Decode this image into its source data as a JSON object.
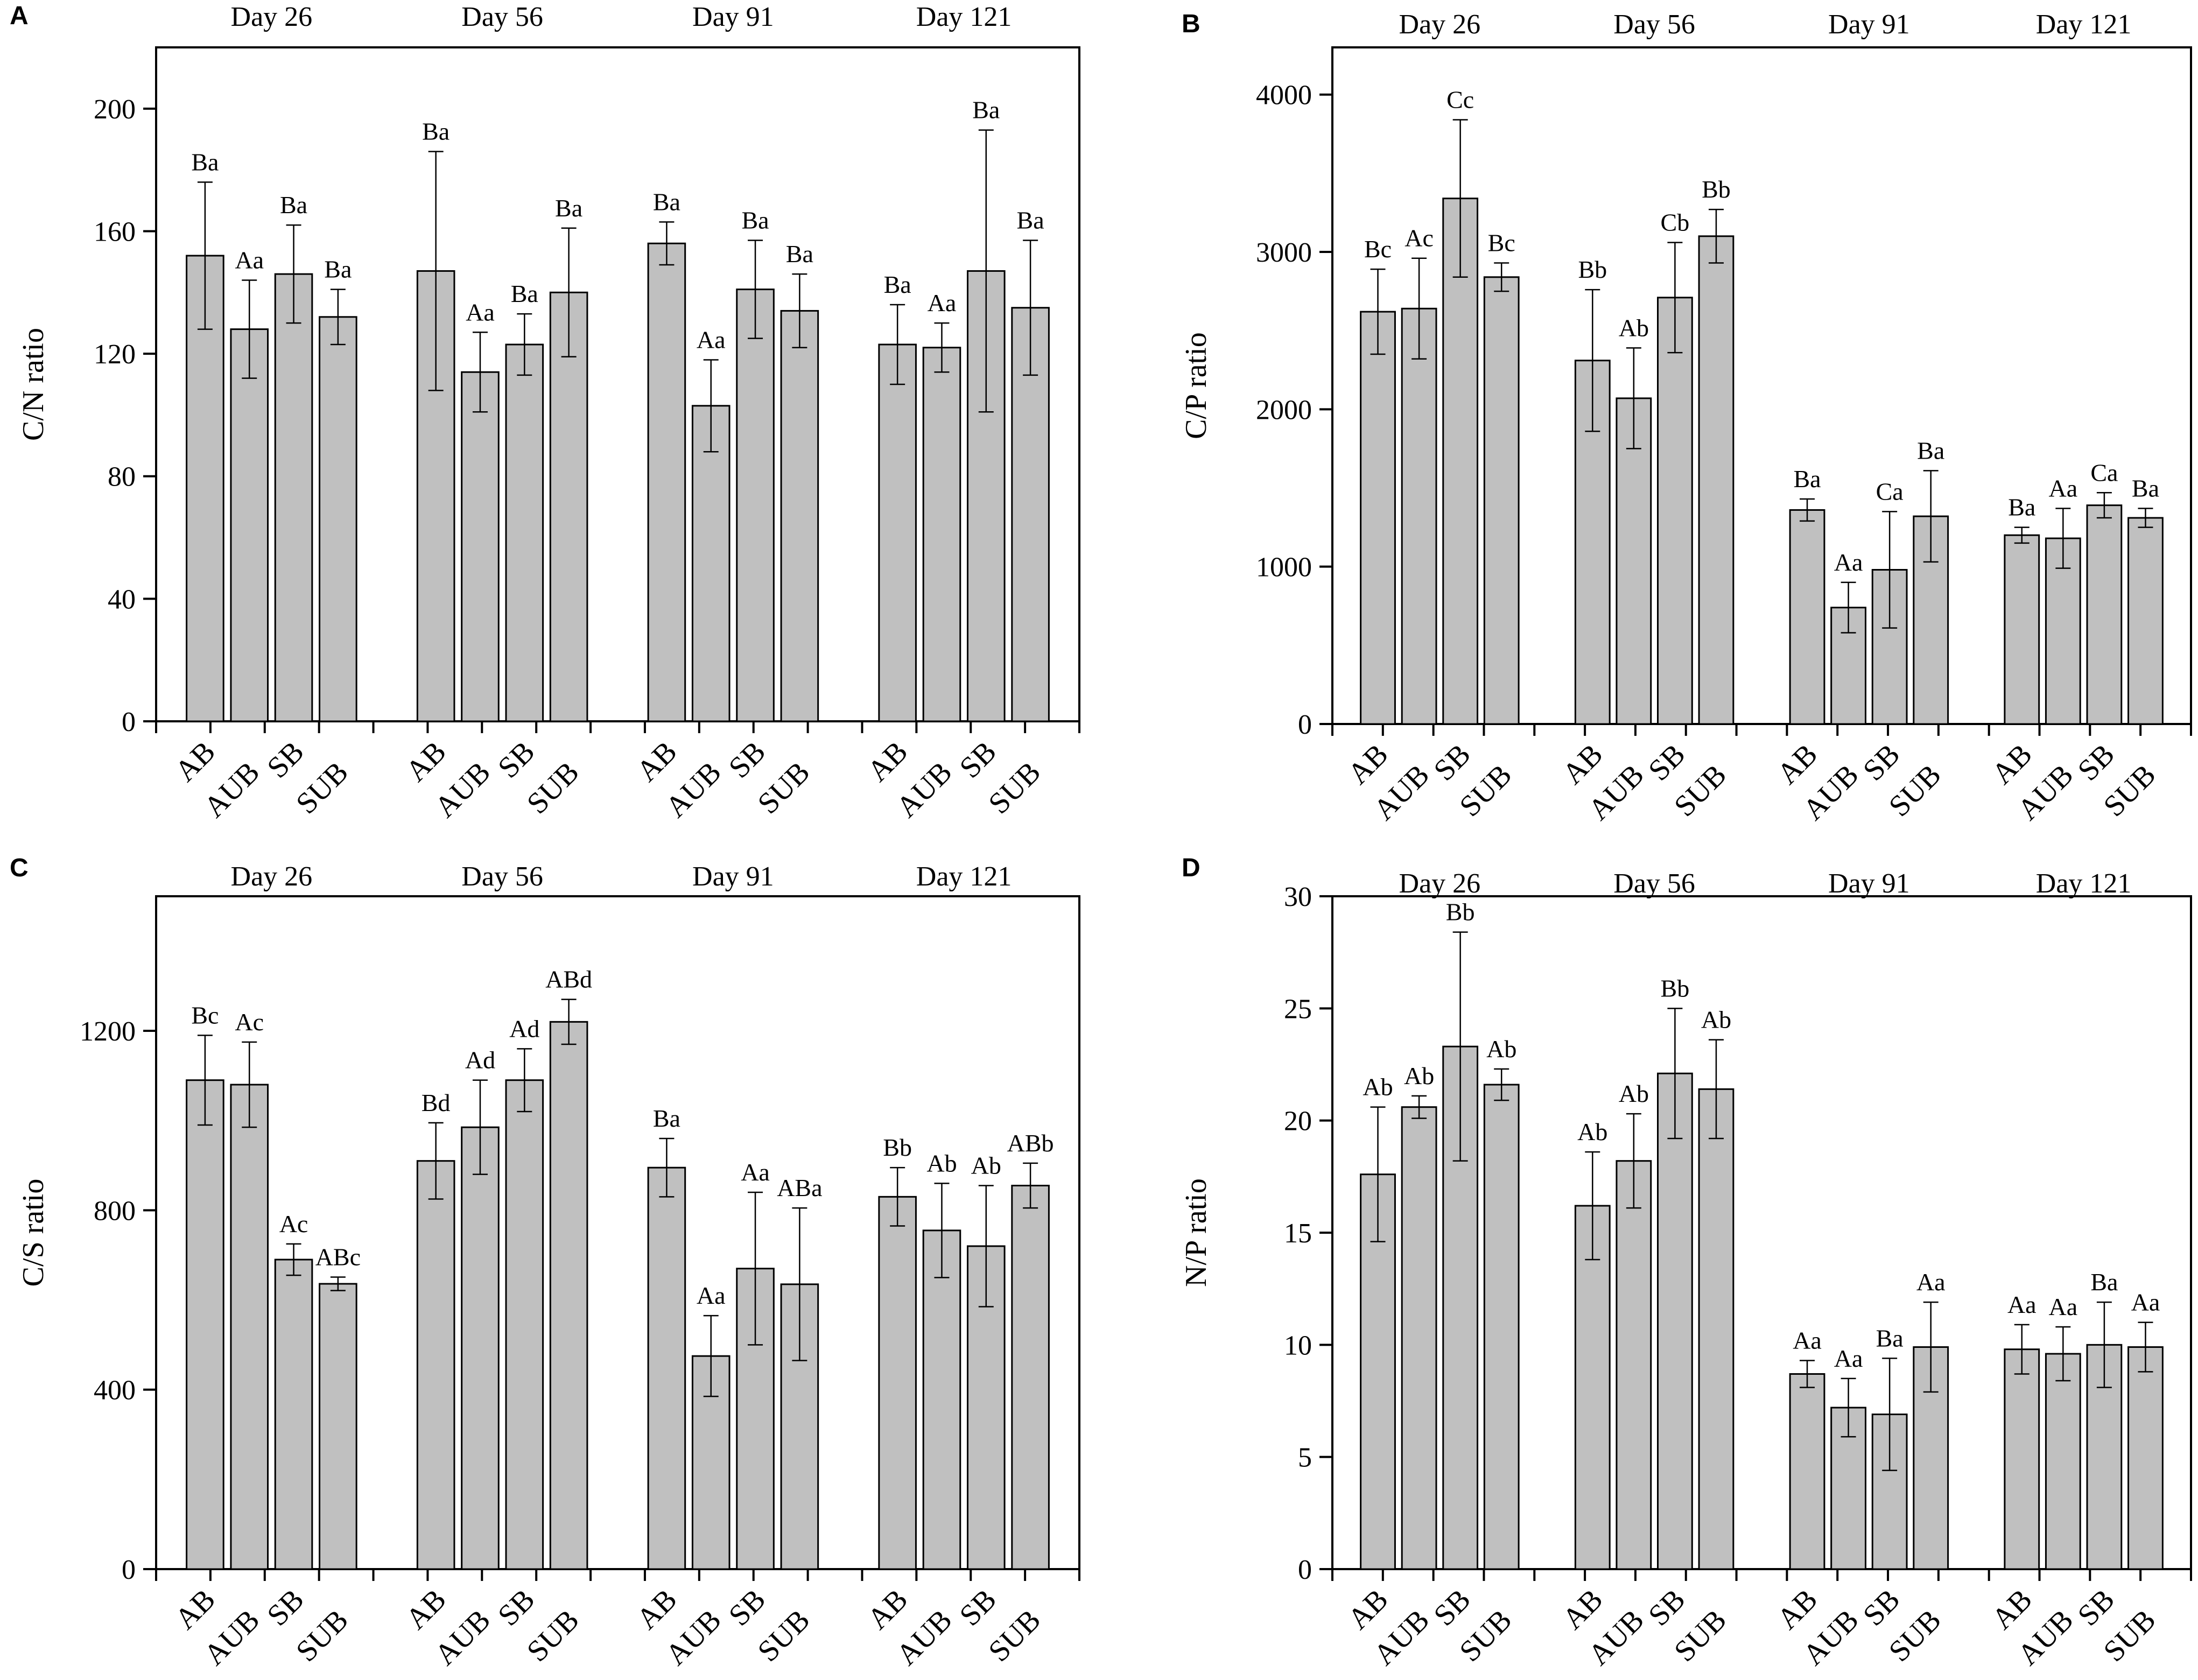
{
  "figure": {
    "bar_color": "#c0c0c0",
    "edge_color": "#000000",
    "background": "#ffffff"
  },
  "chart_data": [
    {
      "panel": "A",
      "type": "bar",
      "ylabel": "C/N ratio",
      "ylim": [
        0,
        220
      ],
      "yticks": [
        0,
        40,
        80,
        120,
        160,
        200
      ],
      "groups": [
        "Day 26",
        "Day 56",
        "Day 91",
        "Day 121"
      ],
      "categories": [
        "AB",
        "AUB",
        "SB",
        "SUB"
      ],
      "values": [
        [
          152,
          128,
          146,
          132
        ],
        [
          147,
          114,
          123,
          140
        ],
        [
          156,
          103,
          141,
          134
        ],
        [
          123,
          122,
          147,
          135
        ]
      ],
      "errors": [
        [
          24,
          16,
          16,
          9
        ],
        [
          39,
          13,
          10,
          21
        ],
        [
          7,
          15,
          16,
          12
        ],
        [
          13,
          8,
          46,
          22
        ]
      ],
      "labels": [
        [
          "Ba",
          "Aa",
          "Ba",
          "Ba"
        ],
        [
          "Ba",
          "Aa",
          "Ba",
          "Ba"
        ],
        [
          "Ba",
          "Aa",
          "Ba",
          "Ba"
        ],
        [
          "Ba",
          "Aa",
          "Ba",
          "Ba"
        ]
      ]
    },
    {
      "panel": "B",
      "type": "bar",
      "ylabel": "C/P ratio",
      "ylim": [
        0,
        4300
      ],
      "yticks": [
        0,
        1000,
        2000,
        3000,
        4000
      ],
      "groups": [
        "Day 26",
        "Day 56",
        "Day 91",
        "Day 121"
      ],
      "categories": [
        "AB",
        "AUB",
        "SB",
        "SUB"
      ],
      "values": [
        [
          2620,
          2640,
          3340,
          2840
        ],
        [
          2310,
          2070,
          2710,
          3100
        ],
        [
          1360,
          740,
          980,
          1320
        ],
        [
          1200,
          1180,
          1390,
          1310
        ]
      ],
      "errors": [
        [
          270,
          320,
          500,
          90
        ],
        [
          450,
          320,
          350,
          170
        ],
        [
          70,
          160,
          370,
          290
        ],
        [
          50,
          190,
          80,
          60
        ]
      ],
      "labels": [
        [
          "Bc",
          "Ac",
          "Cc",
          "Bc"
        ],
        [
          "Bb",
          "Ab",
          "Cb",
          "Bb"
        ],
        [
          "Ba",
          "Aa",
          "Ca",
          "Ba"
        ],
        [
          "Ba",
          "Aa",
          "Ca",
          "Ba"
        ]
      ]
    },
    {
      "panel": "C",
      "type": "bar",
      "ylabel": "C/S ratio",
      "ylim": [
        0,
        1500
      ],
      "yticks": [
        0,
        400,
        800,
        1200
      ],
      "groups": [
        "Day 26",
        "Day 56",
        "Day 91",
        "Day 121"
      ],
      "categories": [
        "AB",
        "AUB",
        "SB",
        "SUB"
      ],
      "values": [
        [
          1090,
          1080,
          690,
          636
        ],
        [
          910,
          985,
          1090,
          1220
        ],
        [
          895,
          475,
          670,
          635
        ],
        [
          830,
          755,
          720,
          855
        ]
      ],
      "errors": [
        [
          100,
          95,
          35,
          15
        ],
        [
          85,
          105,
          70,
          50
        ],
        [
          65,
          90,
          170,
          170
        ],
        [
          65,
          105,
          135,
          50
        ]
      ],
      "labels": [
        [
          "Bc",
          "Ac",
          "Ac",
          "ABc"
        ],
        [
          "Bd",
          "Ad",
          "Ad",
          "ABd"
        ],
        [
          "Ba",
          "Aa",
          "Aa",
          "ABa"
        ],
        [
          "Bb",
          "Ab",
          "Ab",
          "ABb"
        ]
      ]
    },
    {
      "panel": "D",
      "type": "bar",
      "ylabel": "N/P ratio",
      "ylim": [
        0,
        30
      ],
      "yticks": [
        0,
        5,
        10,
        15,
        20,
        25,
        30
      ],
      "groups": [
        "Day 26",
        "Day 56",
        "Day 91",
        "Day 121"
      ],
      "categories": [
        "AB",
        "AUB",
        "SB",
        "SUB"
      ],
      "values": [
        [
          17.6,
          20.6,
          23.3,
          21.6
        ],
        [
          16.2,
          18.2,
          22.1,
          21.4
        ],
        [
          8.7,
          7.2,
          6.9,
          9.9
        ],
        [
          9.8,
          9.6,
          10.0,
          9.9
        ]
      ],
      "errors": [
        [
          3.0,
          0.5,
          5.1,
          0.7
        ],
        [
          2.4,
          2.1,
          2.9,
          2.2
        ],
        [
          0.6,
          1.3,
          2.5,
          2.0
        ],
        [
          1.1,
          1.2,
          1.9,
          1.1
        ]
      ],
      "labels": [
        [
          "Ab",
          "Ab",
          "Bb",
          "Ab"
        ],
        [
          "Ab",
          "Ab",
          "Bb",
          "Ab"
        ],
        [
          "Aa",
          "Aa",
          "Ba",
          "Aa"
        ],
        [
          "Aa",
          "Aa",
          "Ba",
          "Aa"
        ]
      ]
    }
  ]
}
